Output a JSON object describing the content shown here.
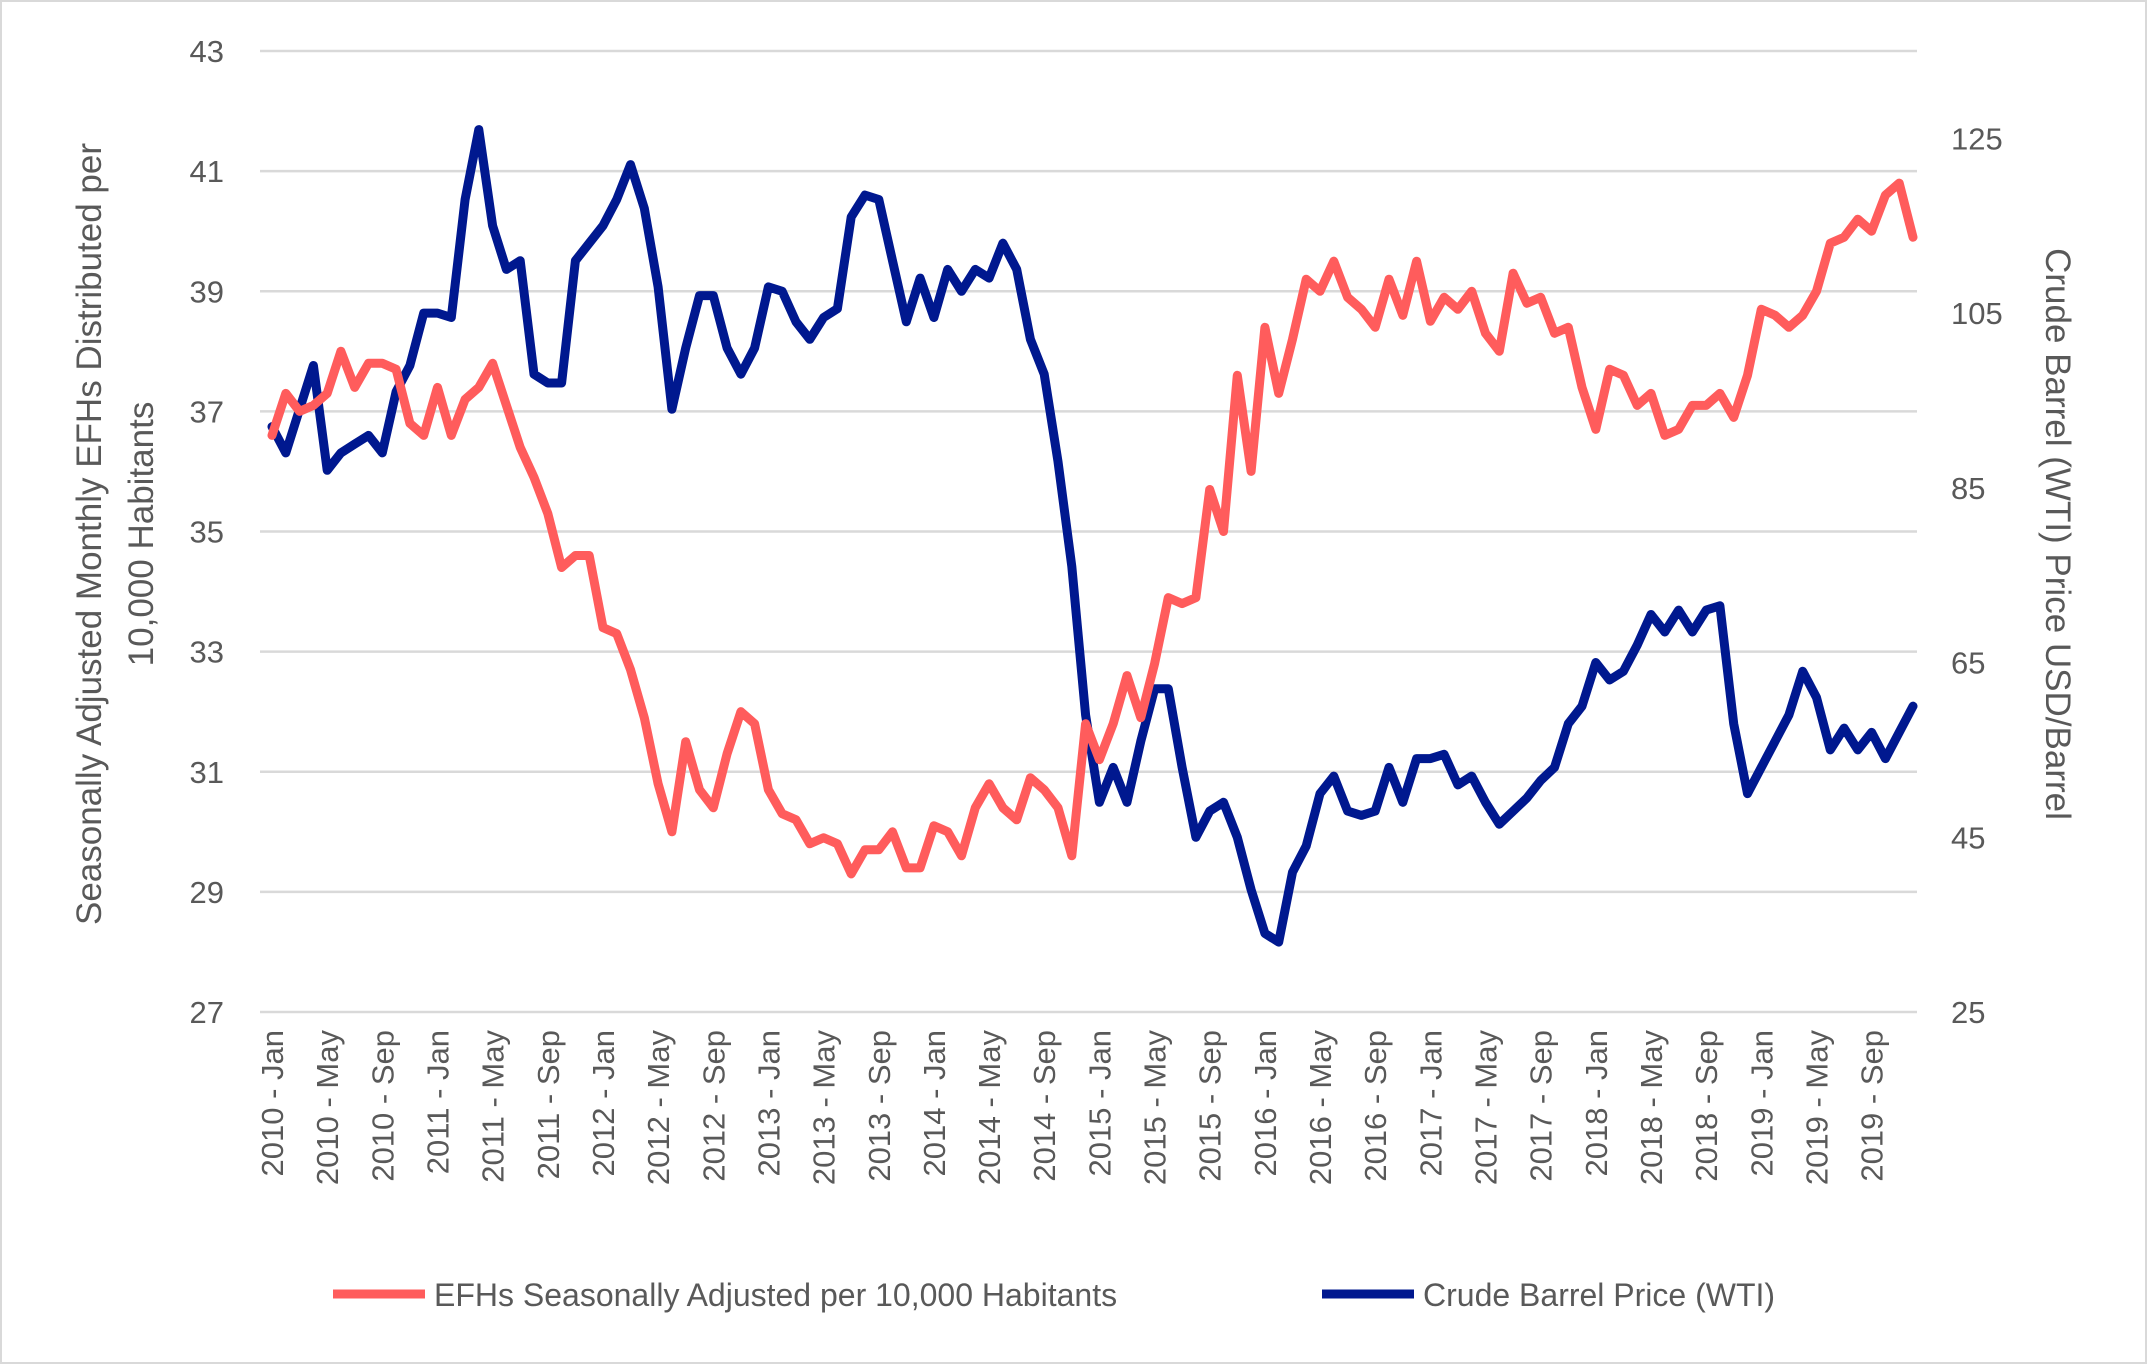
{
  "chart_data": {
    "type": "line",
    "title": "",
    "colors": {
      "efh": "#FF5C5C",
      "wti": "#00188F",
      "grid": "#D9D9D9",
      "text": "#595959"
    },
    "grid": true,
    "legend_position": "bottom",
    "x_tick_labels": [
      "2010 - Jan",
      "2010 - May",
      "2010 - Sep",
      "2011 - Jan",
      "2011 - May",
      "2011 - Sep",
      "2012 - Jan",
      "2012 - May",
      "2012 - Sep",
      "2013 - Jan",
      "2013 - May",
      "2013 - Sep",
      "2014 - Jan",
      "2014 - May",
      "2014 - Sep",
      "2015 - Jan",
      "2015 - May",
      "2015 - Sep",
      "2016 - Jan",
      "2016 - May",
      "2016 - Sep",
      "2017 - Jan",
      "2017 - May",
      "2017 - Sep",
      "2018 - Jan",
      "2018 - May",
      "2018 - Sep",
      "2019 - Jan",
      "2019 - May",
      "2019 - Sep"
    ],
    "x_start": "2010 - Jan",
    "x_end": "2019 - Dec",
    "x_frequency": "monthly",
    "y_left": {
      "label_lines": [
        "Seasonally  Adjusted Monthly EFHs Distributed per",
        "10,000 Habitants"
      ],
      "ylim": [
        27,
        43
      ],
      "ticks": [
        "27",
        "29",
        "31",
        "33",
        "35",
        "37",
        "39",
        "41",
        "43"
      ]
    },
    "y_right": {
      "label": "Crude Barrel (WTI) Price USD/Barrel",
      "ylim": [
        25,
        135
      ],
      "ticks": [
        "25",
        "45",
        "65",
        "85",
        "105",
        "125"
      ]
    },
    "series": [
      {
        "name": "EFHs Seasonally Adjusted per 10,000 Habitants",
        "axis": "left",
        "color": "#FF5C5C",
        "values": [
          36.6,
          37.3,
          37.0,
          37.1,
          37.3,
          38.0,
          37.4,
          37.8,
          37.8,
          37.7,
          36.8,
          36.6,
          37.4,
          36.6,
          37.2,
          37.4,
          37.8,
          37.1,
          36.4,
          35.9,
          35.3,
          34.4,
          34.6,
          34.6,
          33.4,
          33.3,
          32.7,
          31.9,
          30.8,
          30.0,
          31.5,
          30.7,
          30.4,
          31.3,
          32.0,
          31.8,
          30.7,
          30.3,
          30.2,
          29.8,
          29.9,
          29.8,
          29.3,
          29.7,
          29.7,
          30.0,
          29.4,
          29.4,
          30.1,
          30.0,
          29.6,
          30.4,
          30.8,
          30.4,
          30.2,
          30.9,
          30.7,
          30.4,
          29.6,
          31.8,
          31.2,
          31.8,
          32.6,
          31.9,
          32.8,
          33.9,
          33.8,
          33.9,
          35.7,
          35.0,
          37.6,
          36.0,
          38.4,
          37.3,
          38.2,
          39.2,
          39.0,
          39.5,
          38.9,
          38.7,
          38.4,
          39.2,
          38.6,
          39.5,
          38.5,
          38.9,
          38.7,
          39.0,
          38.3,
          38.0,
          39.3,
          38.8,
          38.9,
          38.3,
          38.4,
          37.4,
          36.7,
          37.7,
          37.6,
          37.1,
          37.3,
          36.6,
          36.7,
          37.1,
          37.1,
          37.3,
          36.9,
          37.6,
          38.7,
          38.6,
          38.4,
          38.6,
          39.0,
          39.8,
          39.9,
          40.2,
          40.0,
          40.6,
          40.8,
          39.9
        ]
      },
      {
        "name": "Crude Barrel Price (WTI)",
        "axis": "right",
        "color": "#00188F",
        "values": [
          92,
          89,
          94,
          99,
          87,
          89,
          90,
          91,
          89,
          96,
          99,
          105,
          105,
          104.5,
          118,
          126,
          115,
          110,
          111,
          98,
          97,
          97,
          111,
          113,
          115,
          118,
          122,
          117,
          108,
          94,
          101,
          107,
          107,
          101,
          98,
          101,
          108,
          107.5,
          104,
          102,
          104.5,
          105.5,
          116,
          118.5,
          118,
          111,
          104,
          109,
          104.5,
          110,
          107.5,
          110,
          109,
          113,
          110,
          102,
          98,
          88,
          76,
          59,
          49,
          53,
          49,
          56,
          62,
          62,
          53,
          45,
          48,
          49,
          45,
          39,
          34,
          33,
          41,
          44,
          50,
          52,
          48,
          47.5,
          48,
          53,
          49,
          54,
          54,
          54.5,
          51,
          52,
          49,
          46.5,
          48,
          49.5,
          51.5,
          53,
          58,
          60,
          65,
          63,
          64,
          67,
          70.5,
          68.5,
          71,
          68.5,
          71,
          71.5,
          58,
          50,
          53,
          56,
          59,
          64,
          61,
          55,
          57.5,
          55,
          57,
          54,
          57,
          60
        ]
      }
    ]
  }
}
